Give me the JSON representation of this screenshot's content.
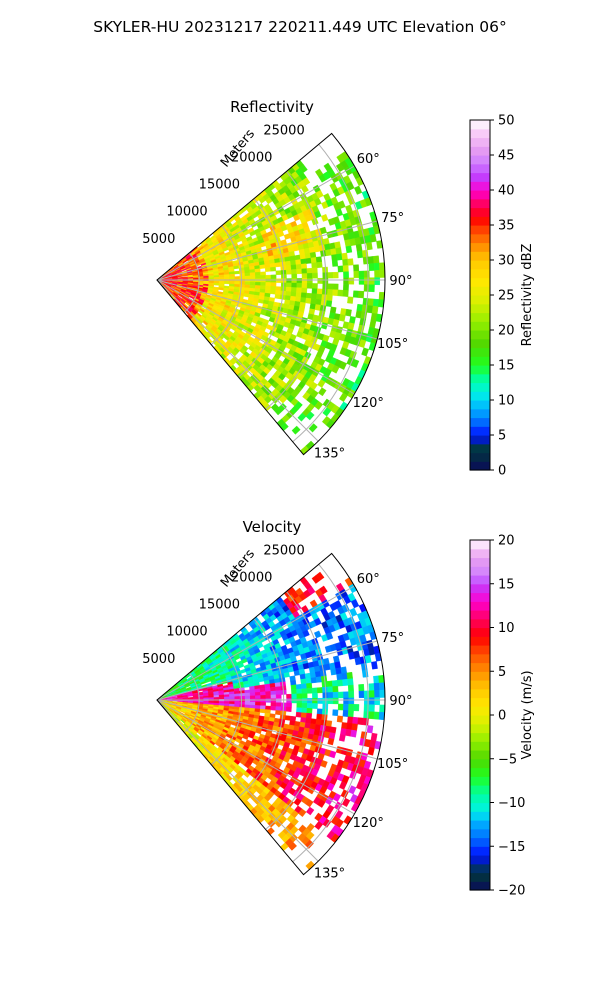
{
  "suptitle": "SKYLER-HU  20231217  220211.449 UTC Elevation 06°",
  "chart_data": [
    {
      "type": "heatmap",
      "projection": "polar-sector",
      "title": "Reflectivity",
      "range_label": "Meters",
      "range_ticks": [
        5000,
        10000,
        15000,
        20000,
        25000
      ],
      "range_tick_labels": [
        "5000",
        "10000",
        "15000",
        "20000",
        "25000"
      ],
      "range_max": 27000,
      "azimuth_range_deg": [
        50,
        140
      ],
      "azimuth_ticks_deg": [
        60,
        75,
        90,
        105,
        120,
        135
      ],
      "azimuth_tick_labels": [
        "60°",
        "75°",
        "90°",
        "105°",
        "120°",
        "135°"
      ],
      "grid": true,
      "colorbar": {
        "label": "Reflectivity dBZ",
        "min": 0,
        "max": 50,
        "ticks": [
          0,
          5,
          10,
          15,
          20,
          25,
          30,
          35,
          40,
          45,
          50
        ],
        "tick_labels": [
          "0",
          "5",
          "10",
          "15",
          "20",
          "25",
          "30",
          "35",
          "40",
          "45",
          "50"
        ],
        "colormap": [
          [
            0,
            "#0a0a5a"
          ],
          [
            3,
            "#003a3a"
          ],
          [
            5,
            "#0010ff"
          ],
          [
            7,
            "#0070ff"
          ],
          [
            9,
            "#00b8ff"
          ],
          [
            11,
            "#00f0e8"
          ],
          [
            13,
            "#00ffa0"
          ],
          [
            15,
            "#20ff20"
          ],
          [
            18,
            "#50d800"
          ],
          [
            21,
            "#90ee00"
          ],
          [
            24,
            "#d8f000"
          ],
          [
            27,
            "#ffe800"
          ],
          [
            30,
            "#ffc800"
          ],
          [
            32,
            "#ff9000"
          ],
          [
            34,
            "#ff5000"
          ],
          [
            36,
            "#ff0000"
          ],
          [
            38,
            "#ff0060"
          ],
          [
            40,
            "#ff00d0"
          ],
          [
            42,
            "#c040ff"
          ],
          [
            44,
            "#d080ff"
          ],
          [
            46,
            "#e8a0f0"
          ],
          [
            48,
            "#f8c8f8"
          ],
          [
            50,
            "#ffffff"
          ]
        ]
      }
    },
    {
      "type": "heatmap",
      "projection": "polar-sector",
      "title": "Velocity",
      "range_label": "Meters",
      "range_ticks": [
        5000,
        10000,
        15000,
        20000,
        25000
      ],
      "range_tick_labels": [
        "5000",
        "10000",
        "15000",
        "20000",
        "25000"
      ],
      "range_max": 27000,
      "azimuth_range_deg": [
        50,
        140
      ],
      "azimuth_ticks_deg": [
        60,
        75,
        90,
        105,
        120,
        135
      ],
      "azimuth_tick_labels": [
        "60°",
        "75°",
        "90°",
        "105°",
        "120°",
        "135°"
      ],
      "grid": true,
      "colorbar": {
        "label": "Velocity (m/s)",
        "min": -20,
        "max": 20,
        "ticks": [
          -20,
          -15,
          -10,
          -5,
          0,
          5,
          10,
          15,
          20
        ],
        "tick_labels": [
          "−20",
          "−15",
          "−10",
          "−5",
          "0",
          "5",
          "10",
          "15",
          "20"
        ],
        "colormap": [
          [
            -20,
            "#0a0a5a"
          ],
          [
            -18,
            "#003a3a"
          ],
          [
            -16,
            "#0010ff"
          ],
          [
            -14,
            "#0070ff"
          ],
          [
            -12,
            "#00b8ff"
          ],
          [
            -11,
            "#00f0e8"
          ],
          [
            -9,
            "#00ffa0"
          ],
          [
            -7,
            "#20ff20"
          ],
          [
            -5,
            "#50d800"
          ],
          [
            -3,
            "#90ee00"
          ],
          [
            -1,
            "#d8f000"
          ],
          [
            1,
            "#ffe800"
          ],
          [
            3,
            "#ffc800"
          ],
          [
            5,
            "#ff9000"
          ],
          [
            7,
            "#ff5000"
          ],
          [
            9,
            "#ff0000"
          ],
          [
            11,
            "#ff0060"
          ],
          [
            13,
            "#ff00d0"
          ],
          [
            15,
            "#c040ff"
          ],
          [
            16,
            "#d080ff"
          ],
          [
            18,
            "#e8a0f0"
          ],
          [
            19,
            "#f8c8f8"
          ],
          [
            20,
            "#ffffff"
          ]
        ]
      }
    }
  ]
}
